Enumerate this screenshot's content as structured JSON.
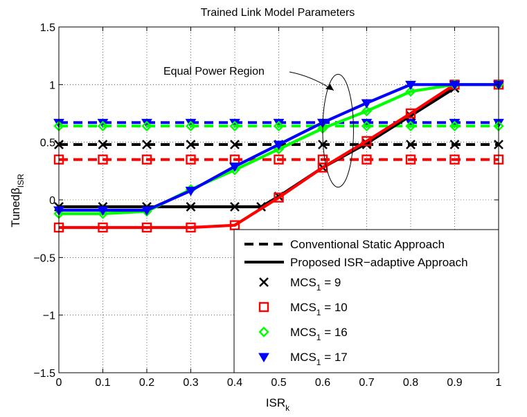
{
  "chart_data": {
    "type": "line",
    "title": "Trained Link Model Parameters",
    "xlabel": {
      "main": "ISR",
      "sub": "k"
    },
    "ylabel": {
      "main": "Tuned",
      "greek": "β",
      "sub": "ISR"
    },
    "xlim": [
      0,
      1
    ],
    "ylim": [
      -1.5,
      1.5
    ],
    "grid": true,
    "x_ticks": [
      "0",
      "0.1",
      "0.2",
      "0.3",
      "0.4",
      "0.5",
      "0.6",
      "0.7",
      "0.8",
      "0.9",
      "1"
    ],
    "y_ticks": [
      "−1.5",
      "−1",
      "−0.5",
      "0",
      "0.5",
      "1",
      "1.5"
    ],
    "x_tick_values": [
      0,
      0.1,
      0.2,
      0.3,
      0.4,
      0.5,
      0.6,
      0.7,
      0.8,
      0.9,
      1.0
    ],
    "y_tick_values": [
      -1.5,
      -1,
      -0.5,
      0,
      0.5,
      1,
      1.5
    ],
    "annotation": {
      "text": "Equal Power Region",
      "ellipse_center": [
        0.635,
        0.6
      ],
      "ellipse_radius": [
        0.035,
        0.49
      ],
      "arrow_tip": [
        0.625,
        0.95
      ]
    },
    "legend_location": "bottom-right",
    "legend": {
      "line_entries": [
        {
          "label": "Conventional Static Approach",
          "style": "dashed"
        },
        {
          "label": "Proposed ISR−adaptive Approach",
          "style": "solid"
        }
      ],
      "marker_entries": [
        {
          "label_main": "MCS",
          "label_sub": "1",
          "label_rest": " = 9",
          "marker": "x",
          "color": "#000000"
        },
        {
          "label_main": "MCS",
          "label_sub": "1",
          "label_rest": " = 10",
          "marker": "square",
          "color": "#ff0000"
        },
        {
          "label_main": "MCS",
          "label_sub": "1",
          "label_rest": " = 16",
          "marker": "diamond",
          "color": "#00ff00"
        },
        {
          "label_main": "MCS",
          "label_sub": "1",
          "label_rest": " = 17",
          "marker": "triangle-down",
          "color": "#0000ff"
        }
      ]
    },
    "series": [
      {
        "group": "MCS1 = 17",
        "style": "dashed",
        "marker": "triangle-down",
        "color": "#0000ff",
        "x": [
          0,
          0.1,
          0.2,
          0.3,
          0.4,
          0.5,
          0.6,
          0.7,
          0.8,
          0.9,
          1.0
        ],
        "y": [
          0.67,
          0.67,
          0.67,
          0.67,
          0.67,
          0.67,
          0.67,
          0.67,
          0.67,
          0.67,
          0.67
        ]
      },
      {
        "group": "MCS1 = 16",
        "style": "dashed",
        "marker": "diamond",
        "color": "#00ff00",
        "x": [
          0,
          0.1,
          0.2,
          0.3,
          0.4,
          0.5,
          0.6,
          0.7,
          0.8,
          0.9,
          1.0
        ],
        "y": [
          0.64,
          0.64,
          0.64,
          0.64,
          0.64,
          0.64,
          0.64,
          0.64,
          0.64,
          0.64,
          0.64
        ]
      },
      {
        "group": "MCS1 = 9",
        "style": "dashed",
        "marker": "x",
        "color": "#000000",
        "x": [
          0,
          0.1,
          0.2,
          0.3,
          0.4,
          0.5,
          0.6,
          0.7,
          0.8,
          0.9,
          1.0
        ],
        "y": [
          0.48,
          0.48,
          0.48,
          0.48,
          0.48,
          0.48,
          0.48,
          0.48,
          0.48,
          0.48,
          0.48
        ]
      },
      {
        "group": "MCS1 = 10",
        "style": "dashed",
        "marker": "square",
        "color": "#ff0000",
        "x": [
          0,
          0.1,
          0.2,
          0.3,
          0.4,
          0.5,
          0.6,
          0.7,
          0.8,
          0.9,
          1.0
        ],
        "y": [
          0.35,
          0.35,
          0.35,
          0.35,
          0.35,
          0.35,
          0.35,
          0.35,
          0.35,
          0.35,
          0.35
        ]
      },
      {
        "group": "MCS1 = 9",
        "style": "solid",
        "marker": "x",
        "color": "#000000",
        "x": [
          0,
          0.1,
          0.2,
          0.3,
          0.4,
          0.46,
          0.5,
          0.6,
          0.7,
          0.8,
          0.9
        ],
        "y": [
          -0.06,
          -0.06,
          -0.06,
          -0.06,
          -0.06,
          -0.06,
          0.03,
          0.28,
          0.49,
          0.73,
          0.97
        ]
      },
      {
        "group": "MCS1 = 10",
        "style": "solid",
        "marker": "square",
        "color": "#ff0000",
        "x": [
          0,
          0.1,
          0.2,
          0.3,
          0.4,
          0.5,
          0.6,
          0.7,
          0.8,
          0.9,
          1.0
        ],
        "y": [
          -0.24,
          -0.24,
          -0.24,
          -0.24,
          -0.22,
          0.02,
          0.28,
          0.51,
          0.75,
          1.0,
          1.0
        ]
      },
      {
        "group": "MCS1 = 16",
        "style": "solid",
        "marker": "diamond",
        "color": "#00ff00",
        "x": [
          0,
          0.1,
          0.2,
          0.3,
          0.4,
          0.5,
          0.6,
          0.7,
          0.8,
          0.9,
          1.0
        ],
        "y": [
          -0.12,
          -0.12,
          -0.1,
          0.09,
          0.26,
          0.44,
          0.62,
          0.77,
          0.94,
          1.0,
          1.0
        ]
      },
      {
        "group": "MCS1 = 17",
        "style": "solid",
        "marker": "triangle-down",
        "color": "#0000ff",
        "x": [
          0,
          0.1,
          0.2,
          0.3,
          0.4,
          0.5,
          0.6,
          0.7,
          0.8,
          0.9,
          1.0
        ],
        "y": [
          -0.09,
          -0.09,
          -0.09,
          0.08,
          0.29,
          0.48,
          0.67,
          0.84,
          1.0,
          1.0,
          1.0
        ]
      }
    ]
  }
}
